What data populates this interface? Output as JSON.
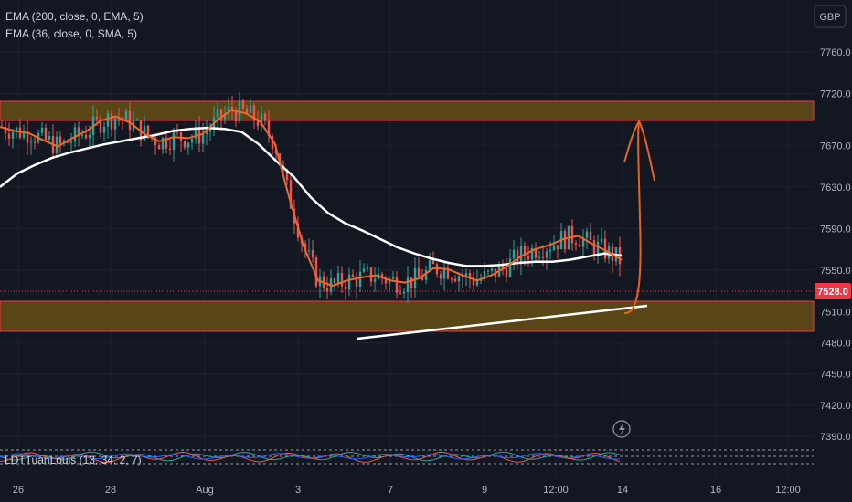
{
  "indicators": {
    "ema200_label": "EMA (200, close, 0, EMA, 5)",
    "ema36_label": "EMA (36, close, 0, SMA, 5)",
    "oscillator_label": "LDTTuanLouis (13, 34, 2, 7)"
  },
  "currency_label": "GBP",
  "last_price_label": "7528.0",
  "colors": {
    "background": "#131722",
    "zone_fill": "#5a4516",
    "zone_border": "#f23645",
    "ema_fast": "#f0672a",
    "ema_slow": "#ffffff",
    "candle_up": "#26a69a",
    "candle_down": "#ef5350",
    "price_tag": "#f23645",
    "annotation_arrow": "#e8621f"
  },
  "icons": {
    "alert": "lightning-icon"
  },
  "chart_data": {
    "type": "candlestick",
    "currency": "GBP",
    "y_ticks": [
      7390.0,
      7420.0,
      7450.0,
      7480.0,
      7510.0,
      7550.0,
      7590.0,
      7630.0,
      7670.0,
      7720.0,
      7760.0
    ],
    "y_tick_labels": [
      "7390.0",
      "7420.0",
      "7450.0",
      "7480.0",
      "7510.0",
      "7550.0",
      "7590.0",
      "7630.0",
      "7670.0",
      "7720.0",
      "7760.0"
    ],
    "x_tick_labels": [
      "26",
      "28",
      "Aug",
      "3",
      "7",
      "9",
      "12:00",
      "14",
      "16",
      "12:00"
    ],
    "last_price": 7528.0,
    "resistance_zone": [
      7698,
      7724
    ],
    "support_zone": [
      7493,
      7522
    ],
    "ema_200_path": [
      7630,
      7643,
      7651,
      7658,
      7663,
      7667,
      7671,
      7674,
      7677,
      7680,
      7684,
      7686,
      7687,
      7686,
      7683,
      7671,
      7655,
      7640,
      7620,
      7605,
      7595,
      7588,
      7580,
      7572,
      7566,
      7561,
      7557,
      7554,
      7554,
      7555,
      7557,
      7558,
      7558,
      7560,
      7563,
      7566,
      7564
    ],
    "ema_36_path": [
      7688,
      7684,
      7682,
      7675,
      7669,
      7677,
      7684,
      7694,
      7698,
      7692,
      7681,
      7674,
      7678,
      7677,
      7681,
      7694,
      7704,
      7701,
      7693,
      7672,
      7620,
      7573,
      7540,
      7535,
      7540,
      7543,
      7545,
      7540,
      7538,
      7542,
      7552,
      7551,
      7545,
      7540,
      7545,
      7553,
      7563,
      7570,
      7574,
      7580,
      7583,
      7575,
      7568,
      7560
    ],
    "trendline": [
      [
        7,
        7503
      ],
      [
        14,
        7519
      ]
    ],
    "projection": "rise from support toward resistance zone"
  }
}
